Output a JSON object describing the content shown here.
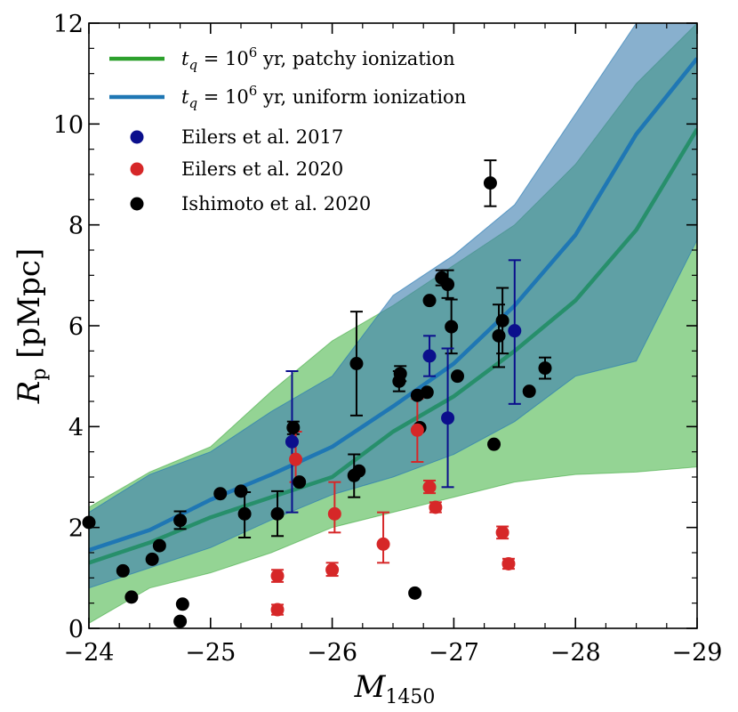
{
  "chart_data": {
    "type": "scatter",
    "title": "",
    "xlabel": {
      "main": "M",
      "sub": "1450"
    },
    "ylabel": {
      "main": "R",
      "sub": "p",
      "unit": " [pMpc]"
    },
    "xlim": [
      -24,
      -29
    ],
    "ylim": [
      0,
      12
    ],
    "xticks": [
      -24,
      -25,
      -26,
      -27,
      -28,
      -29
    ],
    "xtick_labels": [
      "−24",
      "−25",
      "−26",
      "−27",
      "−28",
      "−29"
    ],
    "yticks": [
      0,
      2,
      4,
      6,
      8,
      10,
      12
    ],
    "ytick_labels": [
      "0",
      "2",
      "4",
      "6",
      "8",
      "10",
      "12"
    ],
    "grid": false,
    "legend_position": "top-left",
    "colors": {
      "patchy_line": "#2ca02c",
      "patchy_band": "#7ccb7c",
      "uniform_line": "#1f77b4",
      "uniform_band": "#3f7fb0",
      "overlap_line": "#278f6b",
      "eilers2017": "#0b0f8c",
      "eilers2020": "#d62728",
      "ishimoto2020": "#000000"
    },
    "legend": [
      {
        "key": "patchy",
        "type": "line",
        "color": "#2ca02c",
        "prefix": "t",
        "sub": "q",
        "mid": " = 10",
        "sup": "6",
        "suffix": " yr, patchy ionization"
      },
      {
        "key": "uniform",
        "type": "line",
        "color": "#1f77b4",
        "prefix": "t",
        "sub": "q",
        "mid": " = 10",
        "sup": "6",
        "suffix": " yr, uniform ionization"
      },
      {
        "key": "eilers2017",
        "type": "point",
        "color": "#0b0f8c",
        "label": "Eilers et al. 2017"
      },
      {
        "key": "eilers2020",
        "type": "point",
        "color": "#d62728",
        "label": "Eilers et al. 2020"
      },
      {
        "key": "ishimoto2020",
        "type": "point",
        "color": "#000000",
        "label": "Ishimoto et al. 2020"
      }
    ],
    "series": [
      {
        "name": "patchy ionization",
        "x": [
          -24.0,
          -24.5,
          -25.0,
          -25.5,
          -26.0,
          -26.5,
          -27.0,
          -27.5,
          -28.0,
          -28.5,
          -29.0
        ],
        "median": [
          1.3,
          1.7,
          2.2,
          2.6,
          3.0,
          3.9,
          4.6,
          5.5,
          6.5,
          7.9,
          9.9
        ],
        "lower": [
          0.1,
          0.8,
          1.1,
          1.5,
          2.0,
          2.3,
          2.6,
          2.9,
          3.05,
          3.1,
          3.2
        ],
        "upper": [
          2.4,
          3.1,
          3.6,
          4.7,
          5.7,
          6.4,
          7.2,
          8.0,
          9.2,
          10.8,
          12.0
        ]
      },
      {
        "name": "uniform ionization",
        "x": [
          -24.0,
          -24.5,
          -25.0,
          -25.5,
          -26.0,
          -26.5,
          -27.0,
          -27.5,
          -28.0,
          -28.5,
          -29.0
        ],
        "median": [
          1.55,
          1.95,
          2.55,
          3.05,
          3.6,
          4.4,
          5.25,
          6.4,
          7.8,
          9.8,
          11.3
        ],
        "lower": [
          0.8,
          1.2,
          1.6,
          2.15,
          2.65,
          3.0,
          3.45,
          4.1,
          5.0,
          5.3,
          7.7
        ],
        "upper": [
          2.3,
          3.05,
          3.5,
          4.3,
          5.0,
          6.6,
          7.4,
          8.4,
          10.2,
          12.0,
          12.0
        ]
      }
    ],
    "points": {
      "eilers2017": [
        {
          "x": -25.67,
          "y": 3.7,
          "lo": 2.3,
          "hi": 5.1
        },
        {
          "x": -26.8,
          "y": 5.4,
          "lo": 5.0,
          "hi": 5.8
        },
        {
          "x": -26.95,
          "y": 4.17,
          "lo": 2.8,
          "hi": 5.55
        },
        {
          "x": -27.5,
          "y": 5.9,
          "lo": 4.45,
          "hi": 7.3
        }
      ],
      "eilers2020": [
        {
          "x": -25.55,
          "y": 0.37,
          "lo": 0.27,
          "hi": 0.47
        },
        {
          "x": -25.55,
          "y": 1.04,
          "lo": 0.92,
          "hi": 1.16
        },
        {
          "x": -25.7,
          "y": 3.35,
          "lo": 2.9,
          "hi": 3.9
        },
        {
          "x": -26.0,
          "y": 1.16,
          "lo": 1.04,
          "hi": 1.3
        },
        {
          "x": -26.02,
          "y": 2.27,
          "lo": 1.9,
          "hi": 2.9
        },
        {
          "x": -26.42,
          "y": 1.67,
          "lo": 1.3,
          "hi": 2.3
        },
        {
          "x": -26.7,
          "y": 3.93,
          "lo": 3.3,
          "hi": 4.55
        },
        {
          "x": -26.8,
          "y": 2.8,
          "lo": 2.68,
          "hi": 2.93
        },
        {
          "x": -26.85,
          "y": 2.4,
          "lo": 2.3,
          "hi": 2.5
        },
        {
          "x": -27.4,
          "y": 1.9,
          "lo": 1.78,
          "hi": 2.02
        },
        {
          "x": -27.45,
          "y": 1.28,
          "lo": 1.18,
          "hi": 1.38
        }
      ],
      "ishimoto2020": [
        {
          "x": -24.0,
          "y": 2.1
        },
        {
          "x": -24.28,
          "y": 1.14
        },
        {
          "x": -24.35,
          "y": 0.62
        },
        {
          "x": -24.52,
          "y": 1.37
        },
        {
          "x": -24.58,
          "y": 1.64
        },
        {
          "x": -24.75,
          "y": 2.14,
          "lo": 1.97,
          "hi": 2.32
        },
        {
          "x": -24.75,
          "y": 0.14
        },
        {
          "x": -24.77,
          "y": 0.48
        },
        {
          "x": -25.08,
          "y": 2.67
        },
        {
          "x": -25.25,
          "y": 2.72
        },
        {
          "x": -25.28,
          "y": 2.27,
          "lo": 1.8,
          "hi": 2.7
        },
        {
          "x": -25.55,
          "y": 2.27,
          "lo": 1.83,
          "hi": 2.72
        },
        {
          "x": -25.68,
          "y": 3.98,
          "lo": 3.85,
          "hi": 4.1
        },
        {
          "x": -25.73,
          "y": 2.9
        },
        {
          "x": -26.18,
          "y": 3.03,
          "lo": 2.6,
          "hi": 3.45
        },
        {
          "x": -26.2,
          "y": 5.25,
          "lo": 4.22,
          "hi": 6.28
        },
        {
          "x": -26.22,
          "y": 3.12
        },
        {
          "x": -26.55,
          "y": 4.9,
          "lo": 4.7,
          "hi": 5.1
        },
        {
          "x": -26.56,
          "y": 5.05,
          "lo": 4.9,
          "hi": 5.2
        },
        {
          "x": -26.68,
          "y": 0.7
        },
        {
          "x": -26.7,
          "y": 4.62
        },
        {
          "x": -26.72,
          "y": 3.98
        },
        {
          "x": -26.78,
          "y": 4.68
        },
        {
          "x": -26.8,
          "y": 6.5
        },
        {
          "x": -26.9,
          "y": 6.95,
          "lo": 6.8,
          "hi": 7.1
        },
        {
          "x": -26.95,
          "y": 6.82,
          "lo": 6.55,
          "hi": 7.1
        },
        {
          "x": -26.98,
          "y": 5.98,
          "lo": 5.45,
          "hi": 6.52
        },
        {
          "x": -27.03,
          "y": 5.0
        },
        {
          "x": -27.3,
          "y": 8.83,
          "lo": 8.37,
          "hi": 9.28
        },
        {
          "x": -27.33,
          "y": 3.65
        },
        {
          "x": -27.37,
          "y": 5.8,
          "lo": 5.18,
          "hi": 6.42
        },
        {
          "x": -27.4,
          "y": 6.1,
          "lo": 5.45,
          "hi": 6.75
        },
        {
          "x": -27.62,
          "y": 4.7
        },
        {
          "x": -27.75,
          "y": 5.16,
          "lo": 4.95,
          "hi": 5.37
        }
      ]
    }
  }
}
